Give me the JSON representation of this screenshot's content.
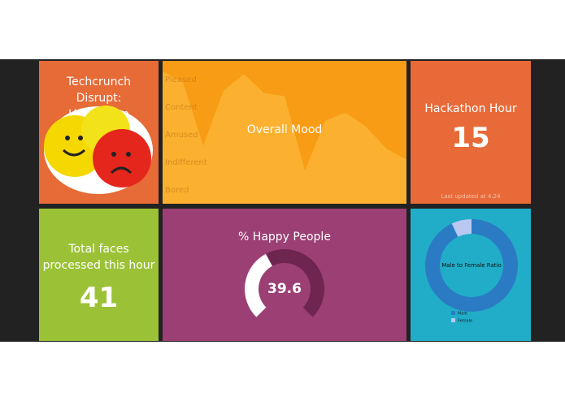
{
  "tiles": {
    "title_tile": {
      "title": "Techcrunch Disrupt: Hackathon"
    },
    "mood": {
      "type": "area",
      "title": "Overall Mood",
      "ylim": [
        0,
        4
      ],
      "yticks": [
        {
          "value": 0,
          "label": "Bored"
        },
        {
          "value": 1,
          "label": "Indifferent"
        },
        {
          "value": 2,
          "label": "Amused"
        },
        {
          "value": 3,
          "label": "Content"
        },
        {
          "value": 4,
          "label": "Pleased"
        }
      ],
      "values": [
        4.3,
        3.9,
        1.6,
        3.6,
        4.2,
        3.5,
        3.4,
        0.7,
        2.5,
        2.8,
        2.3,
        1.5,
        1.1
      ],
      "color": "#fbb12f"
    },
    "hour": {
      "title": "Hackathon Hour",
      "value": 15,
      "footnote": "Last updated at 4:24"
    },
    "faces": {
      "title": "Total faces processed this hour",
      "value": 41
    },
    "happy": {
      "type": "gauge",
      "title": "% Happy People",
      "value": 39.6,
      "range": [
        0,
        100
      ],
      "colors": [
        "#ffffff",
        "#6e2550"
      ]
    },
    "ratio": {
      "type": "pie",
      "title": "Male to Female Ratio",
      "categories": [
        "Male",
        "Female"
      ],
      "values": [
        93,
        7
      ],
      "colors": [
        "#2b7bc4",
        "#b8c8f0"
      ]
    }
  }
}
